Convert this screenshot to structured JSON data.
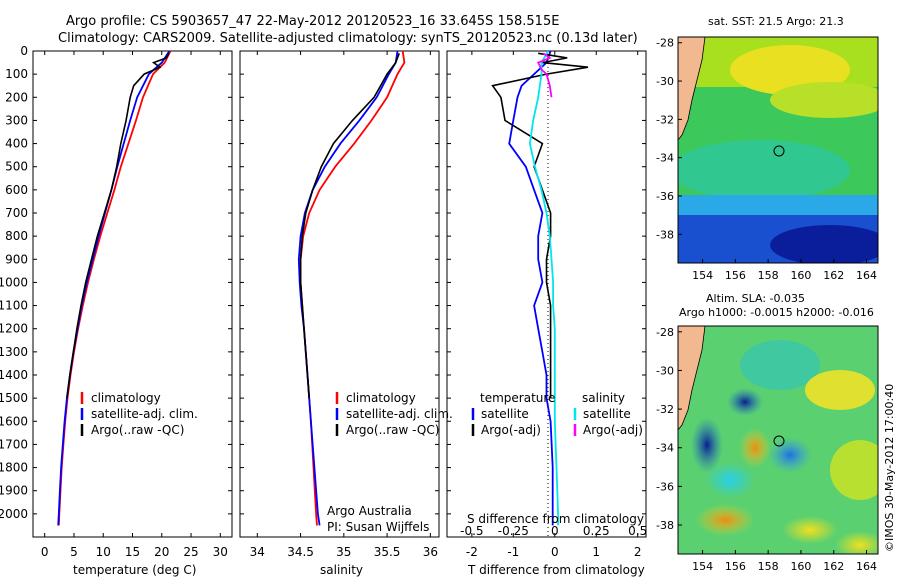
{
  "header": {
    "line1": "Argo profile: CS 5903657_47 22-May-2012 20120523_16 33.645S 158.515E",
    "line2": "Climatology: CARS2009. Satellite-adjusted climatology: synTS_20120523.nc (0.13d later)"
  },
  "colors": {
    "climatology": "#ff0000",
    "satellite": "#0000ff",
    "argo": "#000000",
    "sal_satellite": "#00e5ee",
    "sal_argo": "#ff00ff"
  },
  "chart_data": [
    {
      "type": "line",
      "name": "temperature-profile",
      "xlabel": "temperature (deg C)",
      "ylabel": "",
      "xlim": [
        -2,
        32
      ],
      "ylim": [
        2100,
        0
      ],
      "xticks": [
        "0",
        "5",
        "10",
        "15",
        "20",
        "25",
        "30"
      ],
      "yticks": [
        "0",
        "100",
        "200",
        "300",
        "400",
        "500",
        "600",
        "700",
        "800",
        "900",
        "1000",
        "1100",
        "1200",
        "1300",
        "1400",
        "1500",
        "1600",
        "1700",
        "1800",
        "1900",
        "2000"
      ],
      "legend": [
        "climatology",
        "satellite-adj. clim.",
        "Argo(..raw -QC)"
      ],
      "series": [
        {
          "name": "climatology",
          "color": "#ff0000",
          "depth": [
            0,
            50,
            100,
            200,
            300,
            400,
            500,
            600,
            700,
            800,
            900,
            1000,
            1100,
            1200,
            1300,
            1400,
            1500,
            1600,
            1700,
            1800,
            1900,
            2000,
            2050
          ],
          "values": [
            21.5,
            20.5,
            18.5,
            16.8,
            15.6,
            14.3,
            13.0,
            11.9,
            10.7,
            9.5,
            8.4,
            7.4,
            6.5,
            5.7,
            5.0,
            4.4,
            3.9,
            3.5,
            3.2,
            2.9,
            2.7,
            2.5,
            2.4
          ]
        },
        {
          "name": "satellite-adj. clim.",
          "color": "#0000ff",
          "depth": [
            0,
            50,
            100,
            200,
            300,
            400,
            500,
            600,
            700,
            800,
            900,
            1000,
            1100,
            1200,
            1300,
            1400,
            1500,
            1600,
            1700,
            1800,
            1900,
            2000,
            2050
          ],
          "values": [
            21.3,
            20.0,
            17.8,
            15.8,
            14.6,
            13.5,
            12.4,
            11.4,
            10.3,
            9.2,
            8.2,
            7.2,
            6.3,
            5.6,
            4.9,
            4.3,
            3.8,
            3.4,
            3.1,
            2.8,
            2.6,
            2.4,
            2.3
          ]
        },
        {
          "name": "Argo(..raw -QC)",
          "color": "#000000",
          "depth": [
            10,
            30,
            50,
            70,
            100,
            150,
            200,
            300,
            400,
            500,
            600,
            700,
            800,
            900,
            1000,
            1100,
            1200,
            1300,
            1400,
            1500
          ],
          "values": [
            21.2,
            20.8,
            18.6,
            19.7,
            17.0,
            15.2,
            14.6,
            13.9,
            13.0,
            12.3,
            11.4,
            10.2,
            9.0,
            8.0,
            7.0,
            6.2,
            5.5,
            4.9,
            4.3,
            3.8
          ]
        }
      ]
    },
    {
      "type": "line",
      "name": "salinity-profile",
      "xlabel": "salinity",
      "xlim": [
        33.8,
        36.1
      ],
      "ylim": [
        2100,
        0
      ],
      "xticks": [
        "34",
        "34.5",
        "35",
        "35.5",
        "36"
      ],
      "legend": [
        "climatology",
        "satellite-adj. clim.",
        "Argo(..raw -QC)"
      ],
      "annotation": [
        "Argo Australia",
        "PI: Susan Wijffels"
      ],
      "series": [
        {
          "name": "climatology",
          "color": "#ff0000",
          "depth": [
            0,
            50,
            100,
            200,
            300,
            400,
            500,
            600,
            700,
            800,
            900,
            1000,
            1100,
            1200,
            1400,
            1600,
            1800,
            2000,
            2050
          ],
          "values": [
            35.68,
            35.7,
            35.62,
            35.5,
            35.32,
            35.12,
            34.9,
            34.72,
            34.6,
            34.53,
            34.5,
            34.5,
            34.52,
            34.54,
            34.58,
            34.62,
            34.65,
            34.68,
            34.69
          ]
        },
        {
          "name": "satellite-adj. clim.",
          "color": "#0000ff",
          "depth": [
            0,
            50,
            100,
            200,
            300,
            400,
            500,
            600,
            700,
            800,
            900,
            1000,
            1100,
            1200,
            1400,
            1600,
            1800,
            2000,
            2050
          ],
          "values": [
            35.62,
            35.6,
            35.52,
            35.38,
            35.18,
            34.96,
            34.78,
            34.64,
            34.55,
            34.5,
            34.48,
            34.49,
            34.51,
            34.54,
            34.58,
            34.62,
            34.66,
            34.7,
            34.72
          ]
        },
        {
          "name": "Argo(..raw -QC)",
          "color": "#000000",
          "depth": [
            10,
            50,
            100,
            200,
            300,
            400,
            500,
            600,
            700,
            800,
            900,
            1000,
            1100,
            1200,
            1300,
            1400,
            1500
          ],
          "values": [
            35.64,
            35.6,
            35.5,
            35.35,
            35.1,
            34.88,
            34.74,
            34.64,
            34.56,
            34.52,
            34.5,
            34.5,
            34.52,
            34.54,
            34.56,
            34.58,
            34.6
          ]
        }
      ]
    },
    {
      "type": "line",
      "name": "difference-profile",
      "xlabel": "T difference from climatology",
      "xlabel_top": "S difference from climatology",
      "xlim": [
        -2.6,
        2.2
      ],
      "ylim": [
        2100,
        0
      ],
      "xticks": [
        "-2",
        "-1",
        "0",
        "1",
        "2"
      ],
      "sticks": [
        "-0.5",
        "-0.25",
        "0",
        "0.25",
        "0.5"
      ],
      "legend_headers": [
        "temperature",
        "salinity"
      ],
      "legend": [
        "satellite",
        "Argo(-adj)",
        "satellite",
        "Argo(-adj)"
      ],
      "series": [
        {
          "name": "T satellite",
          "color": "#0000ff",
          "depth": [
            0,
            50,
            100,
            150,
            200,
            300,
            400,
            500,
            600,
            700,
            800,
            900,
            1000,
            1100,
            1200,
            1300,
            1400,
            1500,
            1600,
            1800,
            2000,
            2050
          ],
          "values": [
            -0.1,
            -0.2,
            -0.5,
            -0.8,
            -0.9,
            -1.0,
            -1.1,
            -0.7,
            -0.5,
            -0.3,
            -0.4,
            -0.4,
            -0.3,
            -0.5,
            -0.4,
            -0.3,
            -0.2,
            -0.2,
            -0.1,
            -0.05,
            -0.05,
            -0.05
          ]
        },
        {
          "name": "T Argo(-adj)",
          "color": "#000000",
          "depth": [
            10,
            30,
            50,
            70,
            100,
            150,
            200,
            300,
            400,
            500,
            600,
            700,
            800,
            900,
            1000,
            1100,
            1200,
            1300,
            1400,
            1500
          ],
          "values": [
            -0.4,
            0.3,
            -0.3,
            0.8,
            -0.2,
            -1.5,
            -1.3,
            -1.2,
            -0.3,
            -0.5,
            -0.3,
            -0.1,
            -0.1,
            -0.2,
            -0.2,
            -0.1,
            -0.1,
            -0.1,
            -0.1,
            -0.1
          ]
        },
        {
          "name": "S satellite",
          "color": "#00e5ee",
          "depth": [
            0,
            50,
            100,
            200,
            300,
            400,
            500,
            600,
            700,
            800,
            900,
            1000,
            1100,
            1200,
            1400,
            1600,
            1800,
            2000,
            2050
          ],
          "values": [
            -0.04,
            -0.08,
            -0.08,
            -0.1,
            -0.13,
            -0.15,
            -0.12,
            -0.08,
            -0.05,
            -0.03,
            -0.02,
            -0.01,
            -0.01,
            0.0,
            0.0,
            0.0,
            0.01,
            0.02,
            0.02
          ]
        },
        {
          "name": "S Argo(-adj)",
          "color": "#ff00ff",
          "depth": [
            10,
            30,
            50,
            80,
            100,
            150,
            200
          ],
          "values": [
            -0.07,
            -0.03,
            -0.1,
            -0.08,
            -0.05,
            -0.03,
            -0.02
          ]
        }
      ]
    }
  ],
  "maps": {
    "sst": {
      "title": "sat. SST: 21.5 Argo: 21.3",
      "lat_ticks": [
        "-28",
        "-30",
        "-32",
        "-34",
        "-36",
        "-38"
      ],
      "lon_ticks": [
        "154",
        "156",
        "158",
        "160",
        "162",
        "164"
      ]
    },
    "sla": {
      "title1": "Altim. SLA: -0.035",
      "title2": "Argo h1000: -0.0015 h2000: -0.016",
      "lat_ticks": [
        "-28",
        "-30",
        "-32",
        "-34",
        "-36",
        "-38"
      ],
      "lon_ticks": [
        "154",
        "156",
        "158",
        "160",
        "162",
        "164"
      ]
    },
    "credit": "©IMOS 30-May-2012 17:00:40"
  }
}
